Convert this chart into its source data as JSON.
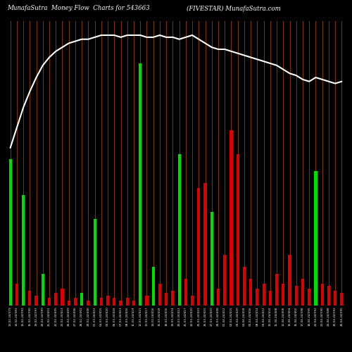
{
  "title_left": "MunafaSutra  Money Flow  Charts for 543663",
  "title_right": "(FIVESTAR) MunafaSutra.com",
  "bg_color": "#000000",
  "bar_color_pos": "#00dd00",
  "bar_color_neg": "#dd0000",
  "grid_color": "#7B3800",
  "line_color": "#ffffff",
  "n_bars": 52,
  "bar_values": [
    60,
    8,
    45,
    5,
    3,
    12,
    2,
    4,
    6,
    1,
    2,
    4,
    1,
    35,
    2,
    3,
    2,
    1,
    2,
    1,
    100,
    3,
    15,
    8,
    4,
    5,
    62,
    10,
    3,
    48,
    50,
    38,
    6,
    20,
    72,
    62,
    15,
    10,
    6,
    8,
    5,
    12,
    8,
    20,
    7,
    10,
    6,
    55,
    8,
    7,
    5,
    4
  ],
  "bar_colors": [
    "pos",
    "neg",
    "pos",
    "neg",
    "neg",
    "pos",
    "neg",
    "neg",
    "neg",
    "neg",
    "neg",
    "pos",
    "neg",
    "pos",
    "neg",
    "neg",
    "neg",
    "neg",
    "neg",
    "neg",
    "pos",
    "neg",
    "pos",
    "neg",
    "neg",
    "neg",
    "pos",
    "neg",
    "neg",
    "neg",
    "neg",
    "pos",
    "neg",
    "neg",
    "neg",
    "neg",
    "neg",
    "neg",
    "neg",
    "neg",
    "neg",
    "neg",
    "neg",
    "neg",
    "neg",
    "neg",
    "neg",
    "pos",
    "neg",
    "neg",
    "neg",
    "neg"
  ],
  "line_values": [
    5,
    15,
    25,
    33,
    40,
    46,
    50,
    53,
    55,
    57,
    58,
    59,
    59,
    60,
    61,
    61,
    61,
    60,
    61,
    61,
    61,
    60,
    60,
    61,
    60,
    60,
    59,
    60,
    61,
    59,
    57,
    55,
    54,
    54,
    53,
    52,
    51,
    50,
    49,
    48,
    47,
    46,
    44,
    42,
    41,
    39,
    38,
    40,
    39,
    38,
    37,
    38
  ],
  "categories": [
    "13-02-24/379",
    "14-02-24/383",
    "15-02-24/393",
    "16-02-24/390",
    "19-02-24/397",
    "20-02-24/399",
    "21-02-24/401",
    "22-02-24/405",
    "23-02-24/413",
    "26-02-24/409",
    "27-02-24/406",
    "28-02-24/402",
    "29-02-24/408",
    "01-03-24/412",
    "04-03-24/415",
    "05-03-24/420",
    "06-03-24/418",
    "07-03-24/413",
    "08-03-24/416",
    "11-03-24/419",
    "12-03-24/421",
    "13-03-24/417",
    "14-03-24/416",
    "15-03-24/418",
    "18-03-24/416",
    "19-03-24/414",
    "20-03-24/412",
    "21-03-24/417",
    "22-03-24/420",
    "25-03-24/419",
    "26-03-24/415",
    "27-03-24/410",
    "28-03-24/408",
    "01-04-24/412",
    "02-04-24/415",
    "03-04-24/420",
    "04-04-24/418",
    "05-04-24/416",
    "08-04-24/414",
    "09-04-24/412",
    "10-04-24/410",
    "11-04-24/408",
    "12-04-24/406",
    "15-04-24/404",
    "16-04-24/402",
    "17-04-24/398",
    "18-04-24/395",
    "22-04-24/392",
    "23-04-24/390",
    "24-04-24/388",
    "25-04-24/392",
    "26-04-24/395"
  ]
}
